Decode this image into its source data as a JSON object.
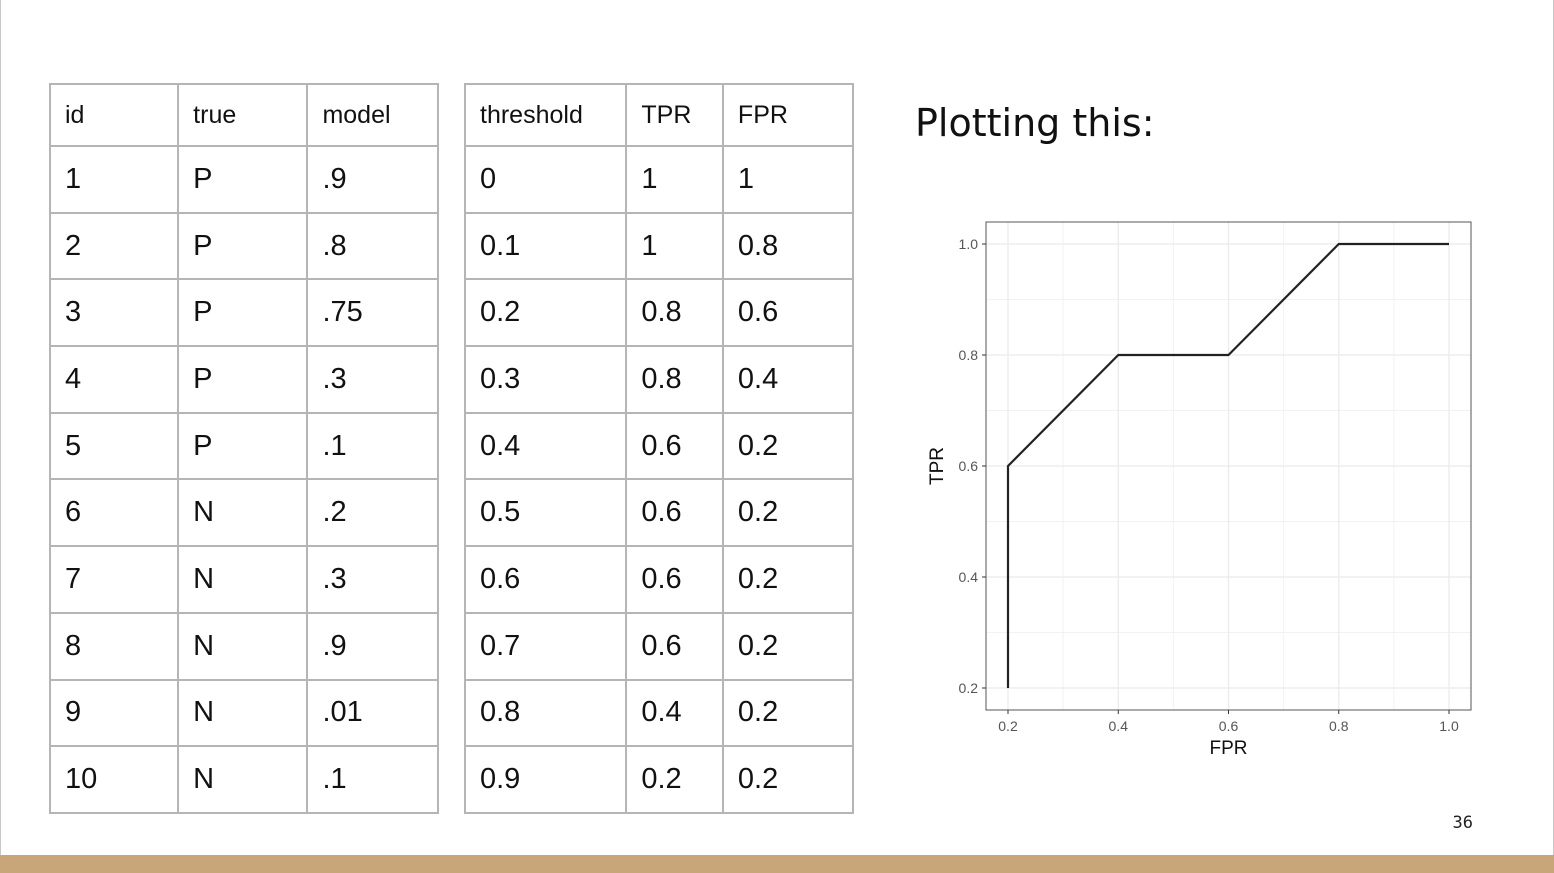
{
  "left_table": {
    "headers": [
      "id",
      "true",
      "model"
    ],
    "rows": [
      [
        "1",
        "P",
        ".9"
      ],
      [
        "2",
        "P",
        ".8"
      ],
      [
        "3",
        "P",
        ".75"
      ],
      [
        "4",
        "P",
        ".3"
      ],
      [
        "5",
        "P",
        ".1"
      ],
      [
        "6",
        "N",
        ".2"
      ],
      [
        "7",
        "N",
        ".3"
      ],
      [
        "8",
        "N",
        ".9"
      ],
      [
        "9",
        "N",
        ".01"
      ],
      [
        "10",
        "N",
        ".1"
      ]
    ]
  },
  "right_table": {
    "headers": [
      "threshold",
      "TPR",
      "FPR"
    ],
    "rows": [
      [
        "0",
        "1",
        "1"
      ],
      [
        "0.1",
        "1",
        "0.8"
      ],
      [
        "0.2",
        "0.8",
        "0.6"
      ],
      [
        "0.3",
        "0.8",
        "0.4"
      ],
      [
        "0.4",
        "0.6",
        "0.2"
      ],
      [
        "0.5",
        "0.6",
        "0.2"
      ],
      [
        "0.6",
        "0.6",
        "0.2"
      ],
      [
        "0.7",
        "0.6",
        "0.2"
      ],
      [
        "0.8",
        "0.4",
        "0.2"
      ],
      [
        "0.9",
        "0.2",
        "0.2"
      ]
    ]
  },
  "plot_heading": "Plotting this:",
  "page_number": "36",
  "colors": {
    "bottom_bar": "#c9a57a",
    "table_border": "#b5b5b5",
    "line": "#222222",
    "panel_grid": "#ebebeb"
  },
  "chart_data": {
    "type": "line",
    "xlabel": "FPR",
    "ylabel": "TPR",
    "x": [
      0.2,
      0.2,
      0.4,
      0.6,
      0.8,
      1.0
    ],
    "y": [
      0.2,
      0.6,
      0.8,
      0.8,
      1.0,
      1.0
    ],
    "xlim": [
      0.2,
      1.0
    ],
    "ylim": [
      0.2,
      1.0
    ],
    "x_ticks": [
      "0.2",
      "0.4",
      "0.6",
      "0.8",
      "1.0"
    ],
    "y_ticks": [
      "0.2",
      "0.4",
      "0.6",
      "0.8",
      "1.0"
    ],
    "grid": true,
    "legend": "none"
  }
}
